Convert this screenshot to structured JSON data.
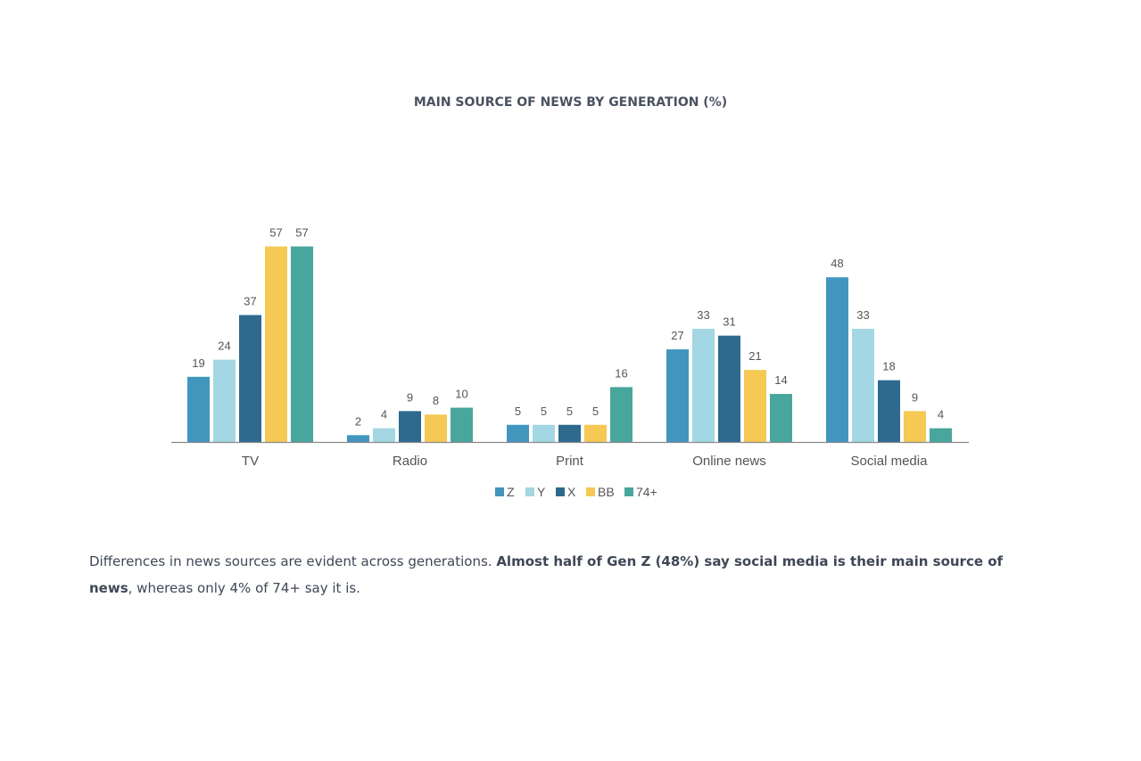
{
  "chart_data": {
    "type": "bar",
    "title": "MAIN SOURCE OF NEWS BY GENERATION (%)",
    "categories": [
      "TV",
      "Radio",
      "Print",
      "Online news",
      "Social media"
    ],
    "series": [
      {
        "name": "Z",
        "color": "#4196be",
        "values": [
          19,
          2,
          5,
          27,
          48
        ]
      },
      {
        "name": "Y",
        "color": "#a3d7e3",
        "values": [
          24,
          4,
          5,
          33,
          33
        ]
      },
      {
        "name": "X",
        "color": "#2d6a8e",
        "values": [
          37,
          9,
          5,
          31,
          18
        ]
      },
      {
        "name": "BB",
        "color": "#f5c953",
        "values": [
          57,
          8,
          5,
          21,
          9
        ]
      },
      {
        "name": "74+",
        "color": "#48a69c",
        "values": [
          57,
          10,
          16,
          14,
          4
        ]
      }
    ],
    "legend_position": "bottom",
    "grid": false
  },
  "caption": {
    "part1": "Differences in news sources are evident across generations. ",
    "bold": "Almost half of Gen Z (48%) say social media is their main source of news",
    "part2": ", whereas only 4% of 74+ say it is."
  }
}
